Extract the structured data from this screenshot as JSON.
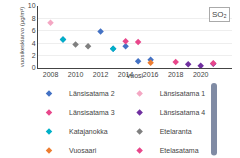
{
  "chart_data": {
    "type": "scatter",
    "title": "SO₂",
    "xlabel": "vuosi",
    "ylabel": "vuosikeskiarvo (μg/m³)",
    "xlim": [
      2007,
      2022.5
    ],
    "ylim": [
      0,
      10
    ],
    "xticks": [
      2008,
      2010,
      2012,
      2014,
      2016,
      2018,
      2020
    ],
    "yticks": [
      0,
      2,
      4,
      6,
      8,
      10
    ],
    "grid": "y",
    "legend": "bottom",
    "series": [
      {
        "name": "Länsisatama 2",
        "color": "#4472c4",
        "marker": "diamond",
        "x": [
          2009,
          2012,
          2013,
          2014,
          2015,
          2016
        ],
        "values": [
          4.6,
          5.9,
          3.1,
          3.5,
          1.1,
          1.35
        ]
      },
      {
        "name": "Länsisatama 1",
        "color": "#f4a7c3",
        "marker": "diamond",
        "x": [
          2008
        ],
        "values": [
          7.3
        ]
      },
      {
        "name": "Länsisatama 3",
        "color": "#e8478b",
        "marker": "diamond",
        "x": [
          2014,
          2015
        ],
        "values": [
          4.3,
          4.2
        ]
      },
      {
        "name": "Länsisatama 4",
        "color": "#7030a0",
        "marker": "diamond",
        "x": [
          2019,
          2020,
          2021
        ],
        "values": [
          0.6,
          0.35,
          0.7
        ]
      },
      {
        "name": "Katajanokka",
        "color": "#00b0c8",
        "marker": "diamond",
        "x": [
          2009,
          2013
        ],
        "values": [
          4.6,
          3.1
        ]
      },
      {
        "name": "Etelaranta",
        "color": "#7f7f7f",
        "marker": "diamond",
        "x": [
          2010,
          2011
        ],
        "values": [
          3.8,
          3.5
        ]
      },
      {
        "name": "Vuosaari",
        "color": "#ed7d31",
        "marker": "diamond",
        "x": [
          2016
        ],
        "values": [
          0.85
        ]
      },
      {
        "name": "Etelasatama",
        "color": "#e8478b",
        "marker": "diamond",
        "x": [
          2018,
          2021
        ],
        "values": [
          0.95,
          0.75
        ]
      }
    ]
  }
}
